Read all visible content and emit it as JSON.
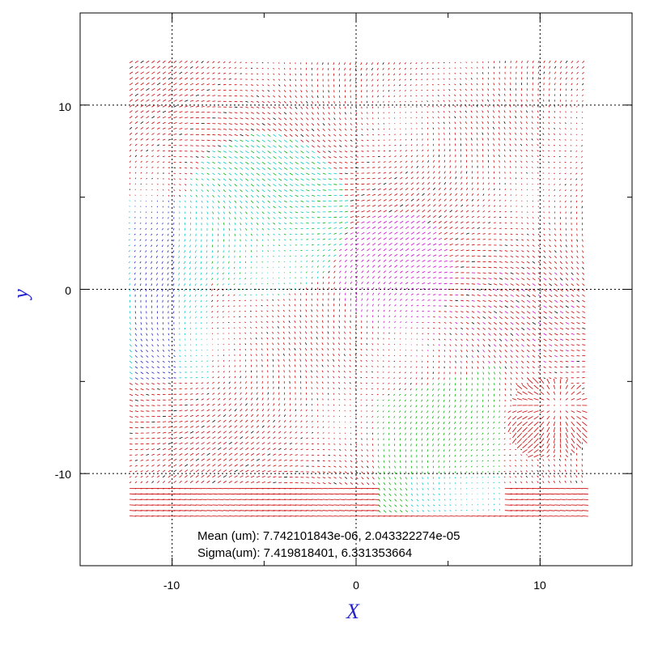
{
  "chart_data": {
    "type": "quiver",
    "xlabel": "X",
    "ylabel": "y",
    "xlim": [
      -15,
      15
    ],
    "ylim": [
      -15,
      15
    ],
    "grid": true,
    "grid_style": "dotted",
    "x_ticks": [
      -10,
      0,
      10
    ],
    "y_ticks": [
      -10,
      0,
      10
    ],
    "x_tick_labels": [
      "-10",
      "0",
      "10"
    ],
    "y_tick_labels": [
      "-10",
      "0",
      "10"
    ],
    "field_extent": {
      "x": [
        -12.3,
        12.3
      ],
      "y": [
        -12.3,
        12.3
      ]
    },
    "colors": {
      "axis_title": "#2222cc",
      "frame": "#000000",
      "grid": "#000000",
      "arrow_palette": [
        "#cc0000",
        "#d000d0",
        "#00b000",
        "#00c8c8",
        "#2020cc",
        "#000000"
      ]
    },
    "annotations": [
      "Mean (um): 7.742101843e-06, 2.043322274e-05",
      "Sigma(um): 7.419818401, 6.331353664"
    ]
  }
}
